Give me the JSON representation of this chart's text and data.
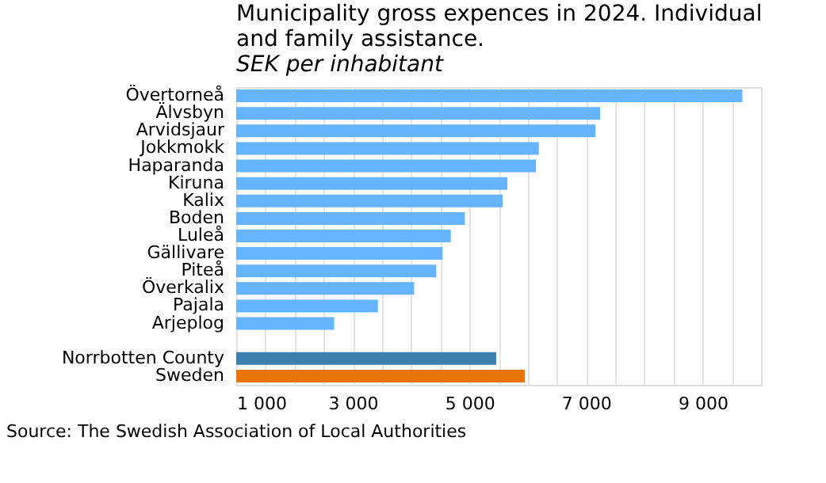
{
  "chart_data": {
    "type": "bar",
    "orientation": "horizontal",
    "title": [
      "Municipality gross expences in 2024. Individual",
      "and family assistance."
    ],
    "subtitle": "SEK per inhabitant",
    "categories": [
      "Övertorneå",
      "Älvsbyn",
      "Arvidsjaur",
      "Jokkmokk",
      "Haparanda",
      "Kiruna",
      "Kalix",
      "Boden",
      "Luleå",
      "Gällivare",
      "Piteå",
      "Överkalix",
      "Pajala",
      "Arjeplog",
      null,
      "Norrbotten County",
      "Sweden"
    ],
    "values": [
      9680,
      7240,
      7160,
      6190,
      6140,
      5650,
      5570,
      4920,
      4680,
      4540,
      4430,
      4050,
      3430,
      2680,
      null,
      5460,
      5950
    ],
    "colors": [
      "#66b3ff",
      "#66b3ff",
      "#66b3ff",
      "#66b3ff",
      "#66b3ff",
      "#66b3ff",
      "#66b3ff",
      "#66b3ff",
      "#66b3ff",
      "#66b3ff",
      "#66b3ff",
      "#66b3ff",
      "#66b3ff",
      "#66b3ff",
      "#66b3ff",
      "#3d80b0",
      "#e8750a"
    ],
    "xlim": [
      1000,
      10000
    ],
    "xticks": [
      {
        "value": 1000,
        "label": "1 000"
      },
      {
        "value": 1500,
        "label": null
      },
      {
        "value": 2000,
        "label": null
      },
      {
        "value": 2500,
        "label": null
      },
      {
        "value": 3000,
        "label": "3 000"
      },
      {
        "value": 3500,
        "label": null
      },
      {
        "value": 4000,
        "label": null
      },
      {
        "value": 4500,
        "label": null
      },
      {
        "value": 5000,
        "label": "5 000"
      },
      {
        "value": 5500,
        "label": null
      },
      {
        "value": 6000,
        "label": null
      },
      {
        "value": 6500,
        "label": null
      },
      {
        "value": 7000,
        "label": "7 000"
      },
      {
        "value": 7500,
        "label": null
      },
      {
        "value": 8000,
        "label": null
      },
      {
        "value": 8500,
        "label": null
      },
      {
        "value": 9000,
        "label": "9 000"
      },
      {
        "value": 9500,
        "label": null
      }
    ],
    "grid": "x",
    "annotations": [
      "Source: The Swedish Association of Local Authorities"
    ]
  }
}
